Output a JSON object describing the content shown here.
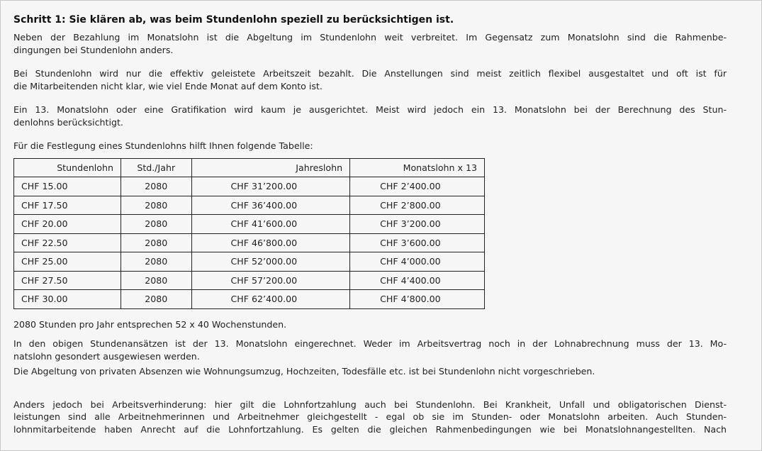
{
  "heading": "Schritt 1: Sie klären ab, was beim Stundenlohn speziell zu berücksichtigen ist.",
  "paragraphs_top": [
    [
      "Neben der Bezahlung im Monatslohn ist die Abgeltung im Stundenlohn weit verbreitet. Im Gegensatz zum Monatslohn sind die Rahmenbe-",
      "dingungen bei Stundenlohn anders."
    ],
    [
      "Bei Stundenlohn wird nur die effektiv geleistete Arbeitszeit bezahlt. Die Anstellungen sind meist zeitlich flexibel ausgestaltet und oft ist für",
      "die Mitarbeitenden nicht klar, wie viel Ende Monat auf dem Konto ist."
    ],
    [
      "Ein 13. Monatslohn oder eine Gratifikation wird kaum je ausgerichtet. Meist wird jedoch ein 13. Monatslohn bei der Berechnung des Stun-",
      "denlohns berücksichtigt."
    ],
    [
      "Für die Festlegung eines Stundenlohns hilft Ihnen folgende Tabelle:"
    ]
  ],
  "table": {
    "headers": [
      "Stundenlohn",
      "Std./Jahr",
      "Jahreslohn",
      "Monatslohn x 13"
    ],
    "rows": [
      [
        "CHF 15.00",
        "2080",
        "CHF 31’200.00",
        "CHF 2’400.00"
      ],
      [
        "CHF 17.50",
        "2080",
        "CHF 36’400.00",
        "CHF 2’800.00"
      ],
      [
        "CHF 20.00",
        "2080",
        "CHF 41’600.00",
        "CHF 3’200.00"
      ],
      [
        "CHF 22.50",
        "2080",
        "CHF 46’800.00",
        "CHF 3’600.00"
      ],
      [
        "CHF 25.00",
        "2080",
        "CHF 52’000.00",
        "CHF 4’000.00"
      ],
      [
        "CHF 27.50",
        "2080",
        "CHF 57’200.00",
        "CHF 4’400.00"
      ],
      [
        "CHF 30.00",
        "2080",
        "CHF 62’400.00",
        "CHF 4’800.00"
      ]
    ]
  },
  "note": "2080 Stunden pro Jahr entsprechen 52 x 40 Wochenstunden.",
  "para_13": [
    "In den obigen Stundenansätzen ist der 13. Monatslohn eingerechnet. Weder im Arbeitsvertrag noch in der Lohnabrechnung muss der 13. Mo-",
    "natslohn gesondert ausgewiesen werden."
  ],
  "para_absenzen": "Die Abgeltung von privaten Absenzen wie Wohnungsumzug, Hochzeiten, Todesfälle etc. ist bei Stundenlohn nicht vorgeschrieben.",
  "para_verhinderung": [
    "Anders jedoch bei Arbeitsverhinderung: hier gilt die Lohnfortzahlung auch bei Stundenlohn. Bei Krankheit, Unfall und obligatorischen Dienst-",
    "leistungen sind alle Arbeitnehmerinnen und Arbeitnehmer gleichgestellt - egal ob sie im Stunden- oder Monatslohn arbeiten. Auch Stunden-",
    "lohnmitarbeitende haben Anrecht auf die Lohnfortzahlung. Es gelten die gleichen Rahmenbedingungen wie bei Monatslohnangestellten. Nach"
  ]
}
